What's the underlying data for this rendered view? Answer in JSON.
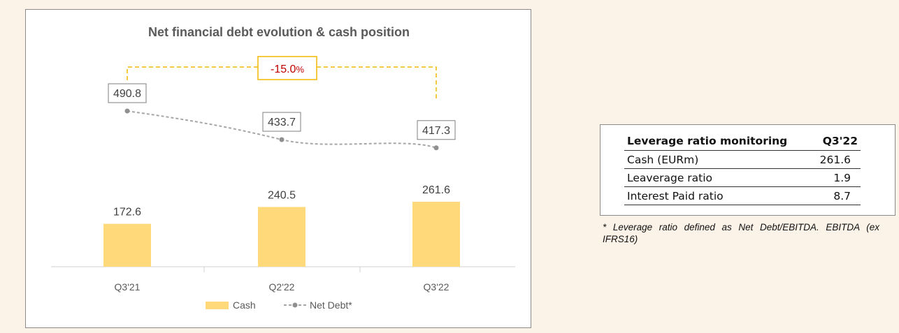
{
  "chart_data": {
    "type": "bar+line",
    "title": "Net financial debt evolution & cash position",
    "categories": [
      "Q3'21",
      "Q2'22",
      "Q3'22"
    ],
    "series": [
      {
        "name": "Cash",
        "type": "bar",
        "values": [
          172.6,
          240.5,
          261.6
        ],
        "value_labels": [
          "172.6",
          "240.5",
          "261.6"
        ],
        "color": "#ffd97a"
      },
      {
        "name": "Net Debt*",
        "type": "line",
        "values": [
          490.8,
          433.7,
          417.3
        ],
        "value_labels": [
          "490.8",
          "433.7",
          "417.3"
        ],
        "color": "#a6a6a6"
      }
    ],
    "annotation": {
      "text": "-15.0",
      "unit": "%",
      "color": "#c00000",
      "bracket_color": "#f2b800"
    },
    "legend": {
      "position": "bottom",
      "items": [
        "Cash",
        "Net Debt*"
      ]
    },
    "grid": false
  },
  "table": {
    "header": {
      "label": "Leverage ratio monitoring",
      "value": "Q3'22"
    },
    "rows": [
      {
        "label": "Cash (EURm)",
        "value": "261.6"
      },
      {
        "label": "Leaverage ratio",
        "value": "1.9"
      },
      {
        "label": "Interest Paid ratio",
        "value": "8.7"
      }
    ]
  },
  "footnote": "* Leverage ratio defined as Net Debt/EBITDA. EBITDA (ex IFRS16)"
}
